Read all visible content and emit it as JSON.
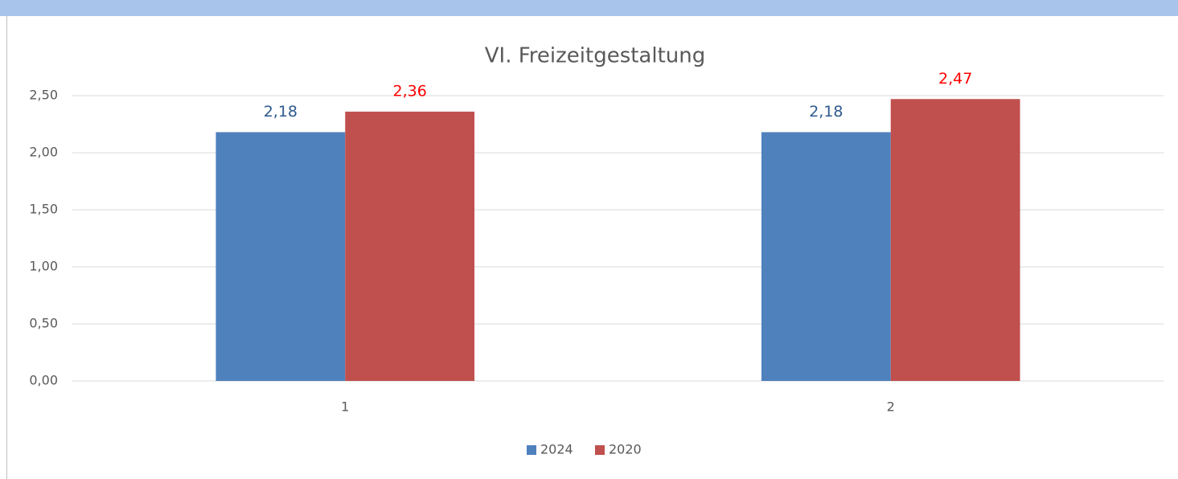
{
  "chart_data": {
    "type": "bar",
    "title": "VI. Freizeitgestaltung",
    "categories": [
      "1",
      "2"
    ],
    "series": [
      {
        "name": "2024",
        "color": "#4f81bd",
        "label_color": "#2e5a8e",
        "values": [
          2.18,
          2.18
        ],
        "value_labels": [
          "2,18",
          "2,18"
        ]
      },
      {
        "name": "2020",
        "color": "#c0504d",
        "label_color": "#ff0000",
        "values": [
          2.36,
          2.47
        ],
        "value_labels": [
          "2,36",
          "2,47"
        ]
      }
    ],
    "ylim": [
      0,
      2.5
    ],
    "yticks": [
      {
        "value": 0,
        "label": "0,00"
      },
      {
        "value": 0.5,
        "label": "0,50"
      },
      {
        "value": 1,
        "label": "1,00"
      },
      {
        "value": 1.5,
        "label": "1,50"
      },
      {
        "value": 2,
        "label": "2,00"
      },
      {
        "value": 2.5,
        "label": "2,50"
      }
    ],
    "grid": true,
    "legend": "bottom"
  }
}
